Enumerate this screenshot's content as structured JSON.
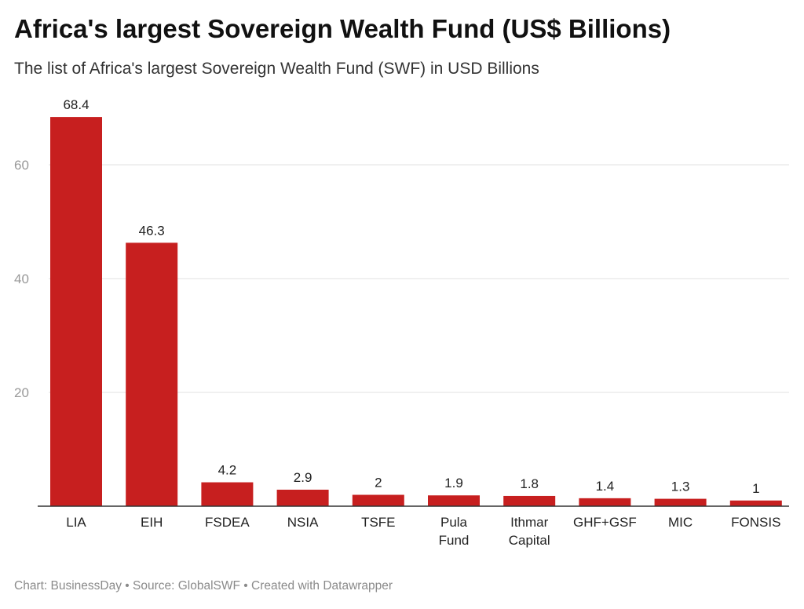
{
  "chart_data": {
    "type": "bar",
    "title": "Africa's largest Sovereign Wealth Fund (US$ Billions)",
    "subtitle": "The list of Africa's largest Sovereign Wealth Fund (SWF) in USD Billions",
    "categories": [
      "LIA",
      "EIH",
      "FSDEA",
      "NSIA",
      "TSFE",
      "Pula Fund",
      "Ithmar Capital",
      "GHF+GSF",
      "MIC",
      "FONSIS"
    ],
    "category_lines": [
      [
        "LIA"
      ],
      [
        "EIH"
      ],
      [
        "FSDEA"
      ],
      [
        "NSIA"
      ],
      [
        "TSFE"
      ],
      [
        "Pula",
        "Fund"
      ],
      [
        "Ithmar",
        "Capital"
      ],
      [
        "GHF+GSF"
      ],
      [
        "MIC"
      ],
      [
        "FONSIS"
      ]
    ],
    "values": [
      68.4,
      46.3,
      4.2,
      2.9,
      2,
      1.9,
      1.8,
      1.4,
      1.3,
      1
    ],
    "value_labels": [
      "68.4",
      "46.3",
      "4.2",
      "2.9",
      "2",
      "1.9",
      "1.8",
      "1.4",
      "1.3",
      "1"
    ],
    "yticks": [
      20,
      40,
      60
    ],
    "ylim": [
      0,
      68.4
    ],
    "xlabel": "",
    "ylabel": "",
    "grid": true,
    "bar_color": "#c71f1f"
  },
  "footer": "Chart: BusinessDay • Source: GlobalSWF • Created with Datawrapper"
}
